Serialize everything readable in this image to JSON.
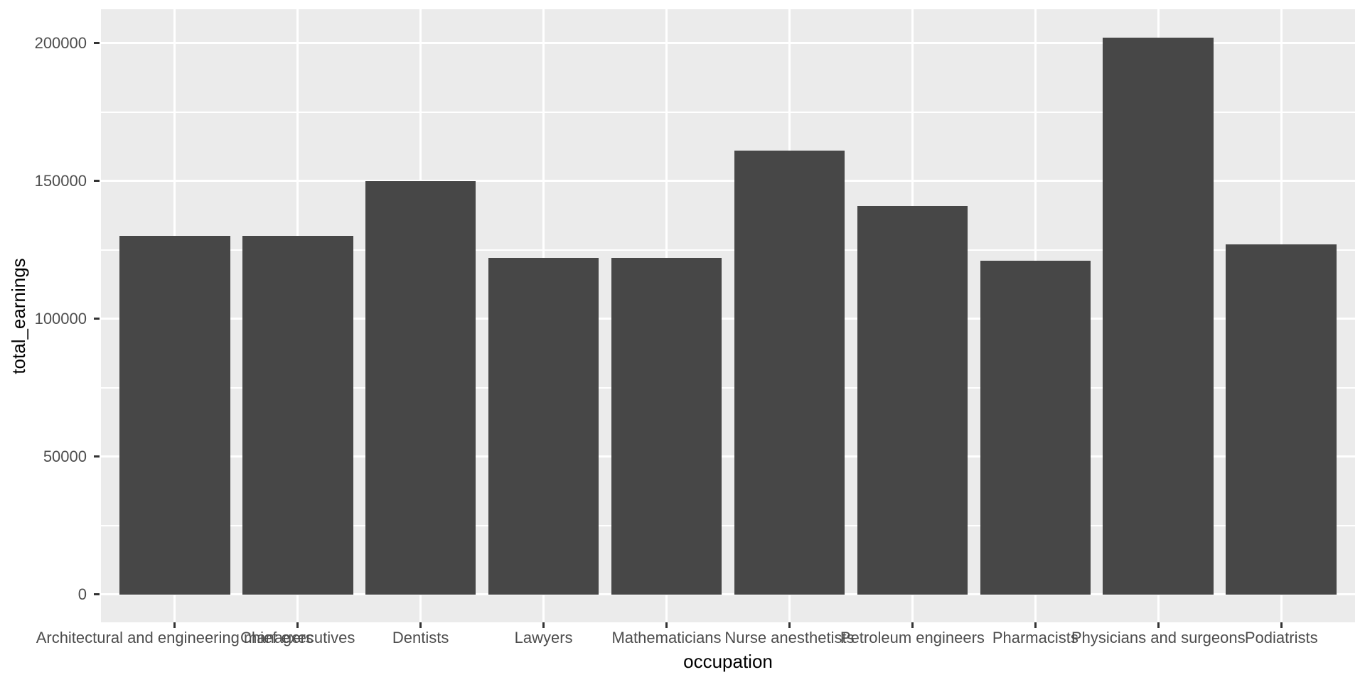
{
  "chart_data": {
    "type": "bar",
    "title": "",
    "xlabel": "occupation",
    "ylabel": "total_earnings",
    "categories": [
      "Architectural and engineering managers",
      "Chief executives",
      "Dentists",
      "Lawyers",
      "Mathematicians",
      "Nurse anesthetists",
      "Petroleum engineers",
      "Pharmacists",
      "Physicians and surgeons",
      "Podiatrists"
    ],
    "values": [
      130000,
      130000,
      150000,
      122000,
      122000,
      161000,
      141000,
      121000,
      202000,
      127000
    ],
    "y_ticks": [
      0,
      50000,
      100000,
      150000,
      200000
    ],
    "y_tick_labels": [
      "0",
      "50000",
      "100000",
      "150000",
      "200000"
    ],
    "ylim": [
      -10100,
      212300
    ],
    "x_domain_units": [
      0.4,
      10.6
    ],
    "bar_width_fraction": 0.9,
    "grid": {
      "horizontal_major": true,
      "horizontal_minor": true,
      "vertical_major_at_categories": true,
      "vertical_minor": false
    },
    "legend": "none",
    "theme": "ggplot2 grey",
    "colors": {
      "bar_fill": "#474747",
      "panel_background": "#EBEBEB",
      "gridline": "#FFFFFF",
      "figure_background": "#FFFFFF",
      "tick_label_text": "#4D4D4D",
      "axis_title_text": "#000000",
      "tick_mark": "#333333"
    }
  }
}
